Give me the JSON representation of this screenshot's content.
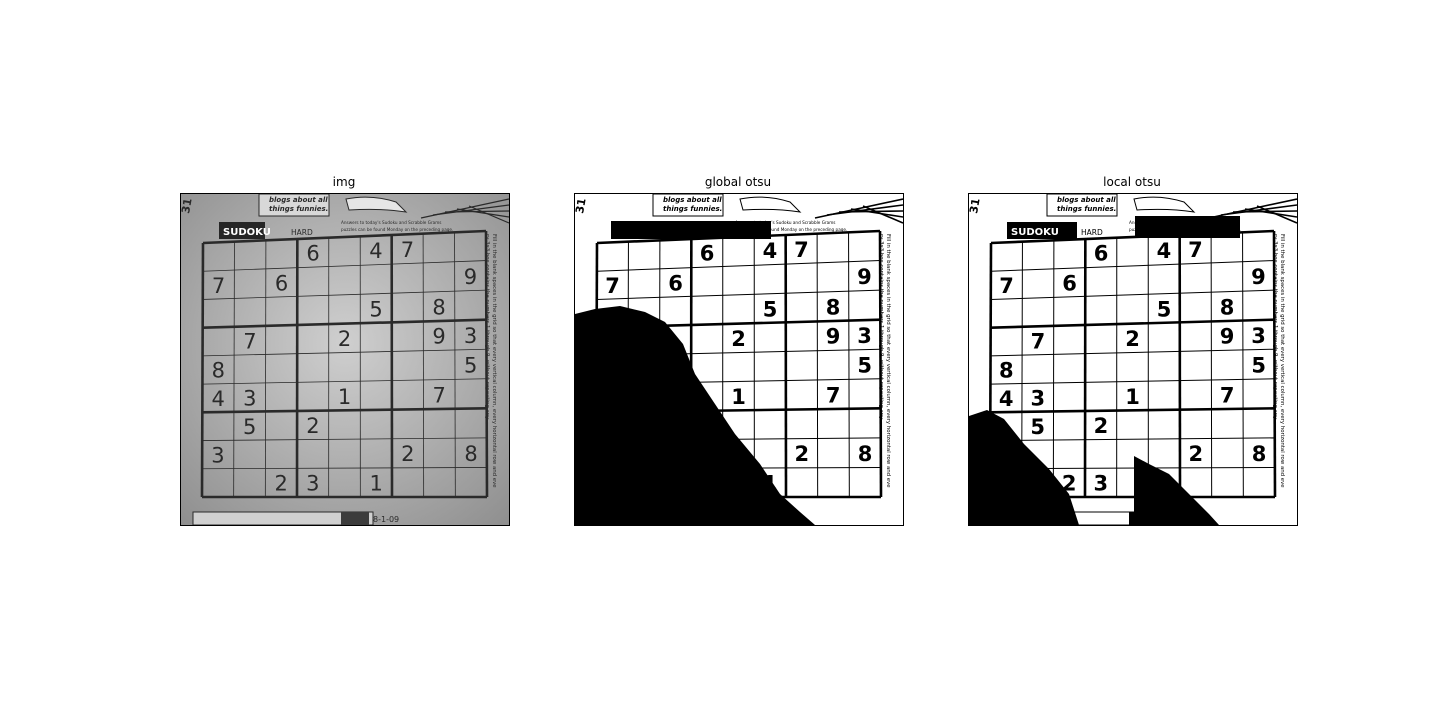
{
  "panels": [
    {
      "title": "img"
    },
    {
      "title": "global otsu"
    },
    {
      "title": "local otsu"
    }
  ],
  "puzzle": {
    "header_label": "SUDOKU",
    "difficulty": "HARD",
    "blurb_top": "blogs about all",
    "blurb_bottom": "things funnies.",
    "page_number": "31",
    "footer_date": "8-1-09",
    "instructions_line1": "Answers to today's Sudoku and Scrabble Grams",
    "instructions_line2": "puzzles can be found Monday on the preceding page.",
    "side_text": "Fill in the blank spaces in the grid so that every vertical column, every horizontal row and every 3x3 box contains the numbers 1 through 9, without repeating any.",
    "givens": [
      {
        "r": 0,
        "c": 3,
        "v": "6"
      },
      {
        "r": 0,
        "c": 5,
        "v": "4"
      },
      {
        "r": 0,
        "c": 6,
        "v": "7"
      },
      {
        "r": 1,
        "c": 0,
        "v": "7"
      },
      {
        "r": 1,
        "c": 2,
        "v": "6"
      },
      {
        "r": 1,
        "c": 8,
        "v": "9"
      },
      {
        "r": 2,
        "c": 5,
        "v": "5"
      },
      {
        "r": 2,
        "c": 7,
        "v": "8"
      },
      {
        "r": 3,
        "c": 1,
        "v": "7"
      },
      {
        "r": 3,
        "c": 4,
        "v": "2"
      },
      {
        "r": 3,
        "c": 7,
        "v": "9"
      },
      {
        "r": 3,
        "c": 8,
        "v": "3"
      },
      {
        "r": 4,
        "c": 0,
        "v": "8"
      },
      {
        "r": 4,
        "c": 8,
        "v": "5"
      },
      {
        "r": 5,
        "c": 0,
        "v": "4"
      },
      {
        "r": 5,
        "c": 1,
        "v": "3"
      },
      {
        "r": 5,
        "c": 4,
        "v": "1"
      },
      {
        "r": 5,
        "c": 7,
        "v": "7"
      },
      {
        "r": 6,
        "c": 1,
        "v": "5"
      },
      {
        "r": 6,
        "c": 3,
        "v": "2"
      },
      {
        "r": 7,
        "c": 0,
        "v": "3"
      },
      {
        "r": 7,
        "c": 6,
        "v": "2"
      },
      {
        "r": 7,
        "c": 8,
        "v": "8"
      },
      {
        "r": 8,
        "c": 2,
        "v": "2"
      },
      {
        "r": 8,
        "c": 3,
        "v": "3"
      },
      {
        "r": 8,
        "c": 5,
        "v": "1"
      }
    ]
  },
  "colors": {
    "gray_background": "#b4b4b4",
    "gray_grid_paper": "#c2c2c2",
    "gray_ink": "#2a2a2a",
    "binary_black": "#000000",
    "binary_white": "#ffffff"
  }
}
